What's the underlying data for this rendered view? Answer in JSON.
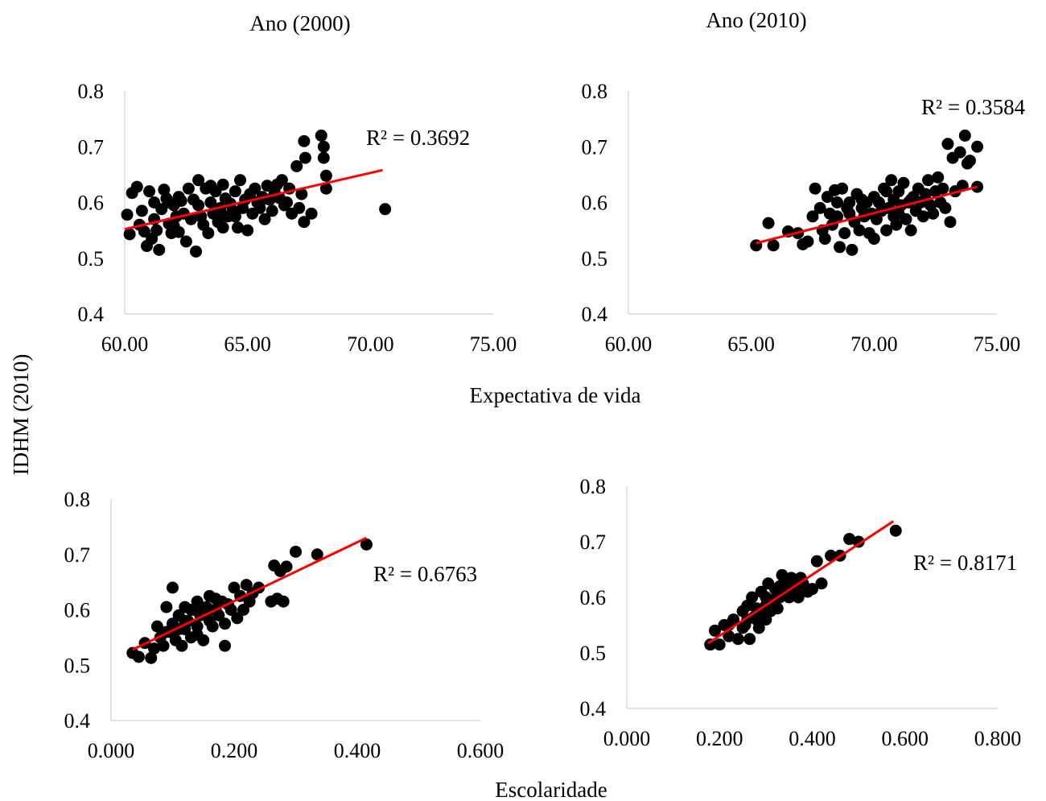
{
  "figure": {
    "column_titles": [
      "Ano (2000)",
      "Ano (2010)"
    ],
    "shared_ylabel": "IDHM (2010)",
    "row_xlabels": [
      "Expectativa de vida",
      "Escolaridade"
    ],
    "marker_color": "#000000",
    "trend_color": "#ff0000"
  },
  "chart_data": [
    {
      "type": "scatter",
      "ylim": [
        0.4,
        0.8
      ],
      "xlim": [
        60,
        75
      ],
      "xticks": [
        "60.00",
        "65.00",
        "70.00",
        "75.00"
      ],
      "yticks": [
        "0.4",
        "0.5",
        "0.6",
        "0.7",
        "0.8"
      ],
      "annotation": "R² = 0.3692",
      "trendline": {
        "x": [
          60.0,
          70.5
        ],
        "y": [
          0.552,
          0.658
        ]
      },
      "points": [
        [
          60.1,
          0.578
        ],
        [
          60.2,
          0.543
        ],
        [
          60.3,
          0.617
        ],
        [
          60.5,
          0.628
        ],
        [
          60.6,
          0.56
        ],
        [
          60.8,
          0.548
        ],
        [
          60.9,
          0.522
        ],
        [
          61.0,
          0.62
        ],
        [
          61.1,
          0.535
        ],
        [
          61.2,
          0.57
        ],
        [
          61.3,
          0.55
        ],
        [
          61.4,
          0.515
        ],
        [
          61.5,
          0.588
        ],
        [
          61.6,
          0.623
        ],
        [
          61.7,
          0.607
        ],
        [
          61.8,
          0.562
        ],
        [
          61.9,
          0.545
        ],
        [
          62.0,
          0.558
        ],
        [
          62.1,
          0.575
        ],
        [
          62.2,
          0.547
        ],
        [
          62.3,
          0.603
        ],
        [
          62.4,
          0.58
        ],
        [
          62.5,
          0.53
        ],
        [
          62.6,
          0.625
        ],
        [
          62.7,
          0.57
        ],
        [
          62.8,
          0.605
        ],
        [
          62.9,
          0.512
        ],
        [
          63.0,
          0.64
        ],
        [
          63.0,
          0.595
        ],
        [
          63.1,
          0.575
        ],
        [
          63.2,
          0.56
        ],
        [
          63.3,
          0.625
        ],
        [
          63.4,
          0.545
        ],
        [
          63.5,
          0.6
        ],
        [
          63.6,
          0.58
        ],
        [
          63.7,
          0.62
        ],
        [
          63.8,
          0.565
        ],
        [
          63.9,
          0.59
        ],
        [
          64.0,
          0.555
        ],
        [
          64.1,
          0.607
        ],
        [
          64.2,
          0.575
        ],
        [
          64.3,
          0.598
        ],
        [
          64.4,
          0.585
        ],
        [
          64.5,
          0.62
        ],
        [
          64.6,
          0.555
        ],
        [
          64.7,
          0.64
        ],
        [
          64.8,
          0.59
        ],
        [
          64.9,
          0.605
        ],
        [
          65.0,
          0.55
        ],
        [
          65.1,
          0.615
        ],
        [
          65.2,
          0.58
        ],
        [
          65.3,
          0.625
        ],
        [
          65.4,
          0.6
        ],
        [
          65.5,
          0.59
        ],
        [
          65.6,
          0.61
        ],
        [
          65.7,
          0.57
        ],
        [
          65.8,
          0.63
        ],
        [
          65.9,
          0.605
        ],
        [
          66.0,
          0.585
        ],
        [
          66.1,
          0.618
        ],
        [
          66.2,
          0.632
        ],
        [
          66.3,
          0.608
        ],
        [
          66.4,
          0.64
        ],
        [
          66.5,
          0.595
        ],
        [
          66.6,
          0.6
        ],
        [
          66.7,
          0.625
        ],
        [
          66.8,
          0.58
        ],
        [
          67.0,
          0.665
        ],
        [
          67.1,
          0.59
        ],
        [
          67.2,
          0.615
        ],
        [
          67.3,
          0.71
        ],
        [
          67.35,
          0.68
        ],
        [
          67.3,
          0.565
        ],
        [
          67.6,
          0.58
        ],
        [
          68.0,
          0.72
        ],
        [
          68.1,
          0.7
        ],
        [
          68.1,
          0.68
        ],
        [
          68.2,
          0.648
        ],
        [
          68.2,
          0.625
        ],
        [
          70.6,
          0.588
        ],
        [
          61.2,
          0.6
        ],
        [
          62.0,
          0.595
        ],
        [
          63.5,
          0.63
        ],
        [
          64.0,
          0.632
        ],
        [
          62.2,
          0.61
        ],
        [
          60.7,
          0.585
        ],
        [
          61.8,
          0.6
        ],
        [
          63.9,
          0.575
        ],
        [
          64.5,
          0.575
        ],
        [
          65.5,
          0.6
        ]
      ]
    },
    {
      "type": "scatter",
      "ylim": [
        0.4,
        0.8
      ],
      "xlim": [
        60,
        75
      ],
      "xticks": [
        "60.00",
        "65.00",
        "70.00",
        "75.00"
      ],
      "yticks": [
        "0.4",
        "0.5",
        "0.6",
        "0.7",
        "0.8"
      ],
      "annotation": "R² = 0.3584",
      "trendline": {
        "x": [
          65.2,
          74.2
        ],
        "y": [
          0.527,
          0.628
        ]
      },
      "points": [
        [
          65.2,
          0.523
        ],
        [
          65.7,
          0.563
        ],
        [
          65.9,
          0.523
        ],
        [
          66.5,
          0.548
        ],
        [
          66.9,
          0.545
        ],
        [
          67.1,
          0.525
        ],
        [
          67.3,
          0.53
        ],
        [
          67.5,
          0.575
        ],
        [
          67.6,
          0.625
        ],
        [
          67.8,
          0.59
        ],
        [
          67.9,
          0.55
        ],
        [
          68.0,
          0.535
        ],
        [
          68.1,
          0.61
        ],
        [
          68.2,
          0.58
        ],
        [
          68.3,
          0.56
        ],
        [
          68.4,
          0.622
        ],
        [
          68.5,
          0.575
        ],
        [
          68.6,
          0.52
        ],
        [
          68.7,
          0.625
        ],
        [
          68.8,
          0.545
        ],
        [
          68.9,
          0.59
        ],
        [
          69.0,
          0.6
        ],
        [
          69.1,
          0.515
        ],
        [
          69.2,
          0.565
        ],
        [
          69.3,
          0.615
        ],
        [
          69.4,
          0.55
        ],
        [
          69.5,
          0.59
        ],
        [
          69.6,
          0.575
        ],
        [
          69.7,
          0.6
        ],
        [
          69.8,
          0.545
        ],
        [
          69.9,
          0.58
        ],
        [
          70.0,
          0.61
        ],
        [
          70.0,
          0.535
        ],
        [
          70.1,
          0.57
        ],
        [
          70.2,
          0.6
        ],
        [
          70.3,
          0.585
        ],
        [
          70.4,
          0.625
        ],
        [
          70.5,
          0.55
        ],
        [
          70.6,
          0.59
        ],
        [
          70.7,
          0.64
        ],
        [
          70.8,
          0.605
        ],
        [
          70.9,
          0.56
        ],
        [
          71.0,
          0.62
        ],
        [
          71.0,
          0.58
        ],
        [
          71.1,
          0.595
        ],
        [
          71.2,
          0.635
        ],
        [
          71.3,
          0.57
        ],
        [
          71.4,
          0.6
        ],
        [
          71.5,
          0.55
        ],
        [
          71.6,
          0.61
        ],
        [
          71.7,
          0.585
        ],
        [
          71.8,
          0.625
        ],
        [
          71.9,
          0.6
        ],
        [
          72.0,
          0.575
        ],
        [
          72.1,
          0.615
        ],
        [
          72.2,
          0.64
        ],
        [
          72.3,
          0.595
        ],
        [
          72.4,
          0.58
        ],
        [
          72.5,
          0.62
        ],
        [
          72.6,
          0.645
        ],
        [
          72.7,
          0.6
        ],
        [
          72.8,
          0.625
        ],
        [
          72.9,
          0.59
        ],
        [
          73.0,
          0.705
        ],
        [
          73.1,
          0.565
        ],
        [
          73.2,
          0.68
        ],
        [
          73.3,
          0.62
        ],
        [
          73.5,
          0.69
        ],
        [
          73.6,
          0.63
        ],
        [
          73.7,
          0.72
        ],
        [
          73.8,
          0.67
        ],
        [
          73.9,
          0.675
        ],
        [
          74.2,
          0.7
        ],
        [
          74.2,
          0.628
        ],
        [
          69.5,
          0.605
        ],
        [
          70.5,
          0.62
        ],
        [
          71.5,
          0.605
        ],
        [
          68.5,
          0.6
        ],
        [
          69.0,
          0.58
        ],
        [
          70.8,
          0.575
        ]
      ]
    },
    {
      "type": "scatter",
      "ylim": [
        0.4,
        0.8
      ],
      "xlim": [
        0,
        0.6
      ],
      "xticks": [
        "0.000",
        "0.200",
        "0.400",
        "0.600"
      ],
      "yticks": [
        "0.4",
        "0.5",
        "0.6",
        "0.7",
        "0.8"
      ],
      "annotation": "R² = 0.6763",
      "trendline": {
        "x": [
          0.035,
          0.415
        ],
        "y": [
          0.528,
          0.73
        ]
      },
      "points": [
        [
          0.035,
          0.522
        ],
        [
          0.045,
          0.515
        ],
        [
          0.055,
          0.54
        ],
        [
          0.065,
          0.513
        ],
        [
          0.07,
          0.53
        ],
        [
          0.075,
          0.57
        ],
        [
          0.08,
          0.55
        ],
        [
          0.085,
          0.535
        ],
        [
          0.09,
          0.605
        ],
        [
          0.095,
          0.56
        ],
        [
          0.1,
          0.64
        ],
        [
          0.1,
          0.575
        ],
        [
          0.105,
          0.545
        ],
        [
          0.11,
          0.59
        ],
        [
          0.115,
          0.535
        ],
        [
          0.12,
          0.605
        ],
        [
          0.12,
          0.565
        ],
        [
          0.125,
          0.58
        ],
        [
          0.13,
          0.55
        ],
        [
          0.135,
          0.6
        ],
        [
          0.14,
          0.615
        ],
        [
          0.14,
          0.57
        ],
        [
          0.145,
          0.59
        ],
        [
          0.15,
          0.545
        ],
        [
          0.155,
          0.605
        ],
        [
          0.16,
          0.58
        ],
        [
          0.16,
          0.625
        ],
        [
          0.165,
          0.57
        ],
        [
          0.17,
          0.6
        ],
        [
          0.175,
          0.59
        ],
        [
          0.18,
          0.615
        ],
        [
          0.185,
          0.575
        ],
        [
          0.185,
          0.535
        ],
        [
          0.19,
          0.61
        ],
        [
          0.195,
          0.6
        ],
        [
          0.2,
          0.64
        ],
        [
          0.205,
          0.585
        ],
        [
          0.21,
          0.625
        ],
        [
          0.215,
          0.6
        ],
        [
          0.22,
          0.645
        ],
        [
          0.225,
          0.615
        ],
        [
          0.23,
          0.63
        ],
        [
          0.24,
          0.64
        ],
        [
          0.26,
          0.615
        ],
        [
          0.265,
          0.68
        ],
        [
          0.27,
          0.62
        ],
        [
          0.275,
          0.67
        ],
        [
          0.28,
          0.615
        ],
        [
          0.285,
          0.678
        ],
        [
          0.3,
          0.705
        ],
        [
          0.335,
          0.7
        ],
        [
          0.415,
          0.718
        ],
        [
          0.13,
          0.6
        ],
        [
          0.11,
          0.565
        ],
        [
          0.15,
          0.6
        ],
        [
          0.17,
          0.62
        ],
        [
          0.09,
          0.56
        ],
        [
          0.12,
          0.58
        ],
        [
          0.14,
          0.555
        ],
        [
          0.16,
          0.6
        ]
      ]
    },
    {
      "type": "scatter",
      "ylim": [
        0.4,
        0.8
      ],
      "xlim": [
        0,
        0.8
      ],
      "xticks": [
        "0.000",
        "0.200",
        "0.400",
        "0.600",
        "0.800"
      ],
      "yticks": [
        "0.4",
        "0.5",
        "0.6",
        "0.7",
        "0.8"
      ],
      "annotation": "R² = 0.8171",
      "trendline": {
        "x": [
          0.175,
          0.575
        ],
        "y": [
          0.517,
          0.737
        ]
      },
      "points": [
        [
          0.18,
          0.515
        ],
        [
          0.19,
          0.54
        ],
        [
          0.2,
          0.515
        ],
        [
          0.21,
          0.55
        ],
        [
          0.22,
          0.53
        ],
        [
          0.23,
          0.56
        ],
        [
          0.24,
          0.525
        ],
        [
          0.25,
          0.575
        ],
        [
          0.255,
          0.55
        ],
        [
          0.26,
          0.585
        ],
        [
          0.265,
          0.525
        ],
        [
          0.27,
          0.6
        ],
        [
          0.275,
          0.565
        ],
        [
          0.28,
          0.58
        ],
        [
          0.285,
          0.545
        ],
        [
          0.29,
          0.61
        ],
        [
          0.295,
          0.57
        ],
        [
          0.3,
          0.6
        ],
        [
          0.305,
          0.625
        ],
        [
          0.31,
          0.575
        ],
        [
          0.315,
          0.595
        ],
        [
          0.32,
          0.615
        ],
        [
          0.325,
          0.58
        ],
        [
          0.33,
          0.6
        ],
        [
          0.335,
          0.64
        ],
        [
          0.34,
          0.61
        ],
        [
          0.345,
          0.625
        ],
        [
          0.35,
          0.6
        ],
        [
          0.355,
          0.635
        ],
        [
          0.36,
          0.62
        ],
        [
          0.365,
          0.61
        ],
        [
          0.37,
          0.6
        ],
        [
          0.375,
          0.635
        ],
        [
          0.38,
          0.625
        ],
        [
          0.39,
          0.61
        ],
        [
          0.4,
          0.615
        ],
        [
          0.41,
          0.665
        ],
        [
          0.42,
          0.625
        ],
        [
          0.44,
          0.675
        ],
        [
          0.46,
          0.675
        ],
        [
          0.48,
          0.705
        ],
        [
          0.5,
          0.7
        ],
        [
          0.58,
          0.72
        ],
        [
          0.26,
          0.56
        ],
        [
          0.3,
          0.585
        ],
        [
          0.28,
          0.56
        ],
        [
          0.33,
          0.62
        ],
        [
          0.25,
          0.545
        ],
        [
          0.22,
          0.55
        ],
        [
          0.3,
          0.56
        ]
      ]
    }
  ]
}
